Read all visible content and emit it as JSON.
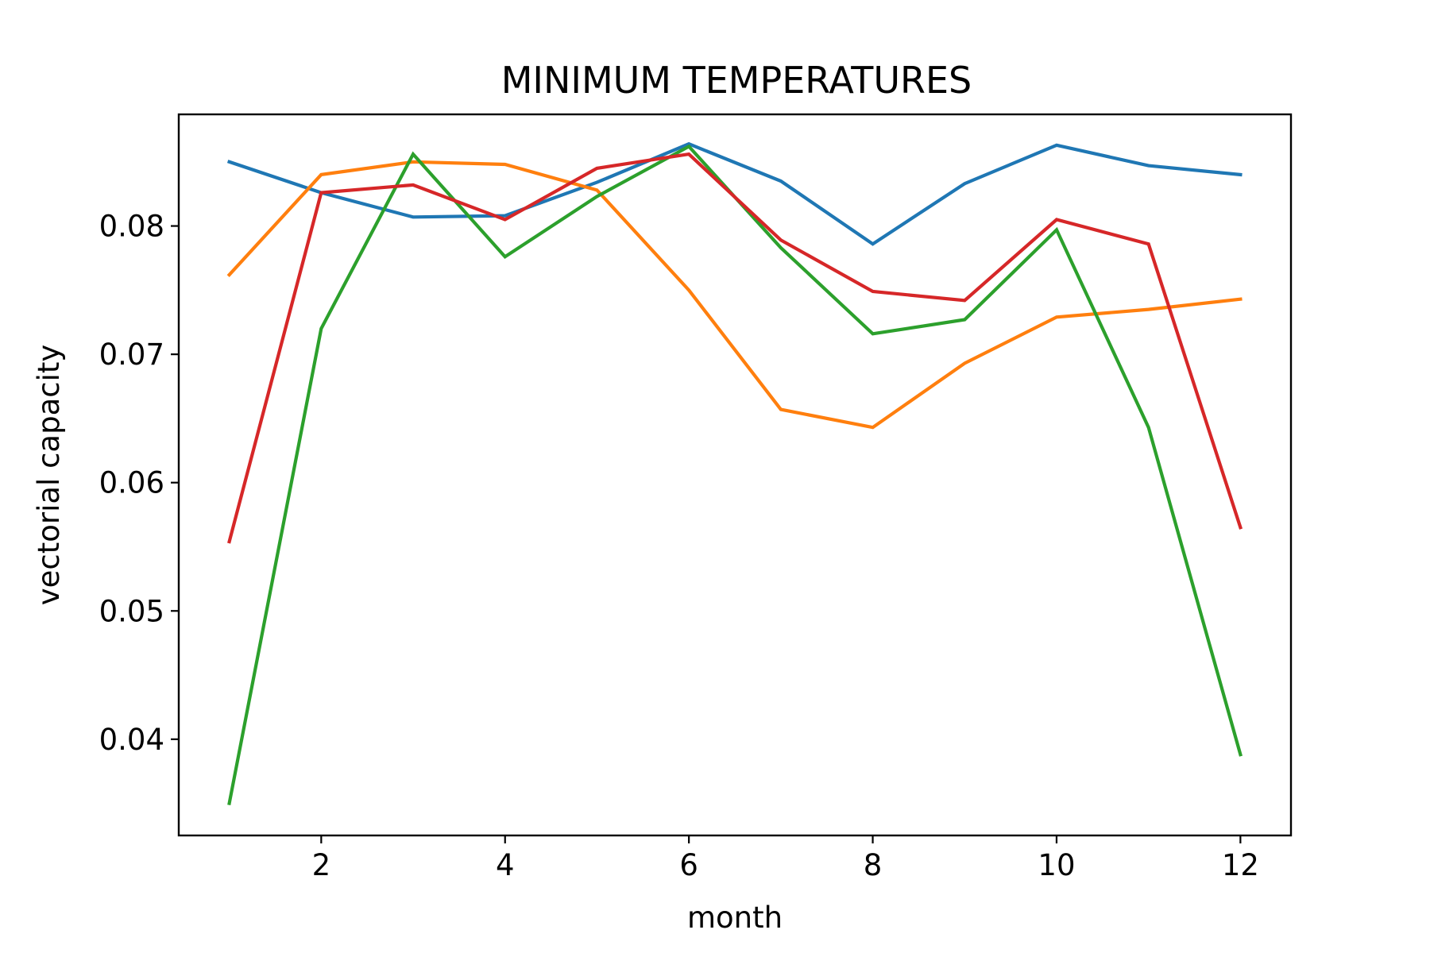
{
  "chart_data": {
    "type": "line",
    "title": "MINIMUM TEMPERATURES",
    "xlabel": "month",
    "ylabel": "vectorial capacity",
    "x": [
      1,
      2,
      3,
      4,
      5,
      6,
      7,
      8,
      9,
      10,
      11,
      12
    ],
    "xlim": [
      0.45,
      12.55
    ],
    "ylim": [
      0.0325,
      0.0887
    ],
    "xticks": [
      2,
      4,
      6,
      8,
      10,
      12
    ],
    "xtick_labels": [
      "2",
      "4",
      "6",
      "8",
      "10",
      "12"
    ],
    "yticks": [
      0.04,
      0.05,
      0.06,
      0.07,
      0.08
    ],
    "ytick_labels": [
      "0.04",
      "0.05",
      "0.06",
      "0.07",
      "0.08"
    ],
    "grid": false,
    "legend": "none",
    "series": [
      {
        "color": "#1f77b4",
        "values": [
          0.085,
          0.0826,
          0.0807,
          0.0808,
          0.0834,
          0.0864,
          0.0835,
          0.0786,
          0.0833,
          0.0863,
          0.0847,
          0.084
        ]
      },
      {
        "color": "#ff7f0e",
        "values": [
          0.0762,
          0.084,
          0.085,
          0.0848,
          0.0828,
          0.075,
          0.0657,
          0.0643,
          0.0693,
          0.0729,
          0.0735,
          0.0743
        ]
      },
      {
        "color": "#2ca02c",
        "values": [
          0.035,
          0.072,
          0.0856,
          0.0776,
          0.0823,
          0.0862,
          0.0783,
          0.0716,
          0.0727,
          0.0797,
          0.0643,
          0.0388
        ]
      },
      {
        "color": "#d62728",
        "values": [
          0.0554,
          0.0826,
          0.0832,
          0.0805,
          0.0845,
          0.0856,
          0.0789,
          0.0749,
          0.0742,
          0.0805,
          0.0786,
          0.0565
        ]
      }
    ]
  }
}
